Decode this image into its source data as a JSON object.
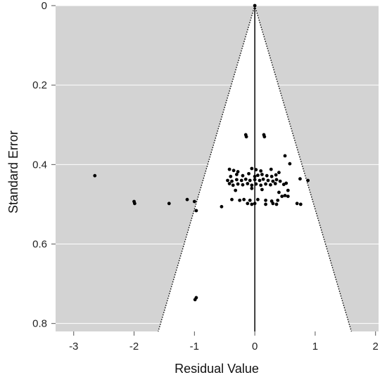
{
  "chart_data": {
    "type": "scatter",
    "subtype": "funnel",
    "xlabel": "Residual Value",
    "ylabel": "Standard Error",
    "xlim": [
      -3.3,
      2.05
    ],
    "ylim": [
      0,
      0.82
    ],
    "y_reversed": true,
    "x_ticks": [
      "-3",
      "-2",
      "-1",
      "0",
      "1",
      "2"
    ],
    "y_ticks": [
      "0",
      "0.2",
      "0.4",
      "0.6",
      "0.8"
    ],
    "x_tick_values": [
      -3,
      -2,
      -1,
      0,
      1,
      2
    ],
    "y_tick_values": [
      0,
      0.2,
      0.4,
      0.6,
      0.8
    ],
    "grid": true,
    "background_color": "#d3d3d3",
    "funnel_fill_color": "#ffffff",
    "point_color": "#000000",
    "funnel": {
      "apex_x": 0,
      "apex_se": 0,
      "bottom_se": 0.82,
      "left_x": -1.6,
      "right_x": 1.6
    },
    "reference_line_x": 0,
    "points": [
      [
        0.0,
        0.0
      ],
      [
        -0.15,
        0.325
      ],
      [
        -0.14,
        0.33
      ],
      [
        0.15,
        0.325
      ],
      [
        0.16,
        0.33
      ],
      [
        0.5,
        0.378
      ],
      [
        0.58,
        0.398
      ],
      [
        -0.42,
        0.412
      ],
      [
        -0.35,
        0.415
      ],
      [
        -0.28,
        0.418
      ],
      [
        -0.05,
        0.41
      ],
      [
        0.02,
        0.413
      ],
      [
        0.1,
        0.416
      ],
      [
        0.27,
        0.412
      ],
      [
        0.4,
        0.42
      ],
      [
        -0.4,
        0.43
      ],
      [
        -0.3,
        0.425
      ],
      [
        -0.2,
        0.428
      ],
      [
        -0.1,
        0.423
      ],
      [
        0.0,
        0.43
      ],
      [
        0.05,
        0.427
      ],
      [
        0.12,
        0.425
      ],
      [
        0.2,
        0.428
      ],
      [
        0.28,
        0.43
      ],
      [
        0.35,
        0.426
      ],
      [
        -0.45,
        0.44
      ],
      [
        -0.38,
        0.442
      ],
      [
        -0.3,
        0.438
      ],
      [
        -0.22,
        0.44
      ],
      [
        -0.15,
        0.437
      ],
      [
        -0.08,
        0.44
      ],
      [
        0.0,
        0.438
      ],
      [
        0.08,
        0.44
      ],
      [
        0.14,
        0.437
      ],
      [
        0.22,
        0.44
      ],
      [
        0.3,
        0.442
      ],
      [
        0.36,
        0.438
      ],
      [
        0.42,
        0.442
      ],
      [
        0.75,
        0.436
      ],
      [
        -0.42,
        0.448
      ],
      [
        -0.36,
        0.452
      ],
      [
        -0.28,
        0.449
      ],
      [
        -0.2,
        0.451
      ],
      [
        -0.12,
        0.448
      ],
      [
        -0.05,
        0.452
      ],
      [
        0.02,
        0.449
      ],
      [
        0.1,
        0.452
      ],
      [
        0.18,
        0.449
      ],
      [
        0.26,
        0.451
      ],
      [
        0.34,
        0.448
      ],
      [
        0.48,
        0.45
      ],
      [
        0.52,
        0.447
      ],
      [
        0.88,
        0.44
      ],
      [
        -0.32,
        0.465
      ],
      [
        -0.05,
        0.46
      ],
      [
        0.12,
        0.463
      ],
      [
        0.4,
        0.47
      ],
      [
        0.55,
        0.465
      ],
      [
        0.45,
        0.48
      ],
      [
        0.5,
        0.478
      ],
      [
        0.55,
        0.48
      ],
      [
        -0.38,
        0.488
      ],
      [
        -0.25,
        0.49
      ],
      [
        -0.18,
        0.488
      ],
      [
        -0.08,
        0.49
      ],
      [
        0.05,
        0.488
      ],
      [
        0.18,
        0.49
      ],
      [
        0.28,
        0.492
      ],
      [
        0.38,
        0.49
      ],
      [
        -0.12,
        0.498
      ],
      [
        -0.05,
        0.5
      ],
      [
        0.0,
        0.498
      ],
      [
        0.18,
        0.5
      ],
      [
        0.3,
        0.498
      ],
      [
        0.36,
        0.5
      ],
      [
        0.7,
        0.498
      ],
      [
        0.76,
        0.5
      ],
      [
        -0.55,
        0.506
      ],
      [
        -2.65,
        0.428
      ],
      [
        -2.0,
        0.493
      ],
      [
        -1.99,
        0.498
      ],
      [
        -1.42,
        0.498
      ],
      [
        -1.12,
        0.488
      ],
      [
        -1.0,
        0.493
      ],
      [
        -0.97,
        0.516
      ],
      [
        -0.99,
        0.74
      ],
      [
        -0.97,
        0.735
      ]
    ]
  }
}
